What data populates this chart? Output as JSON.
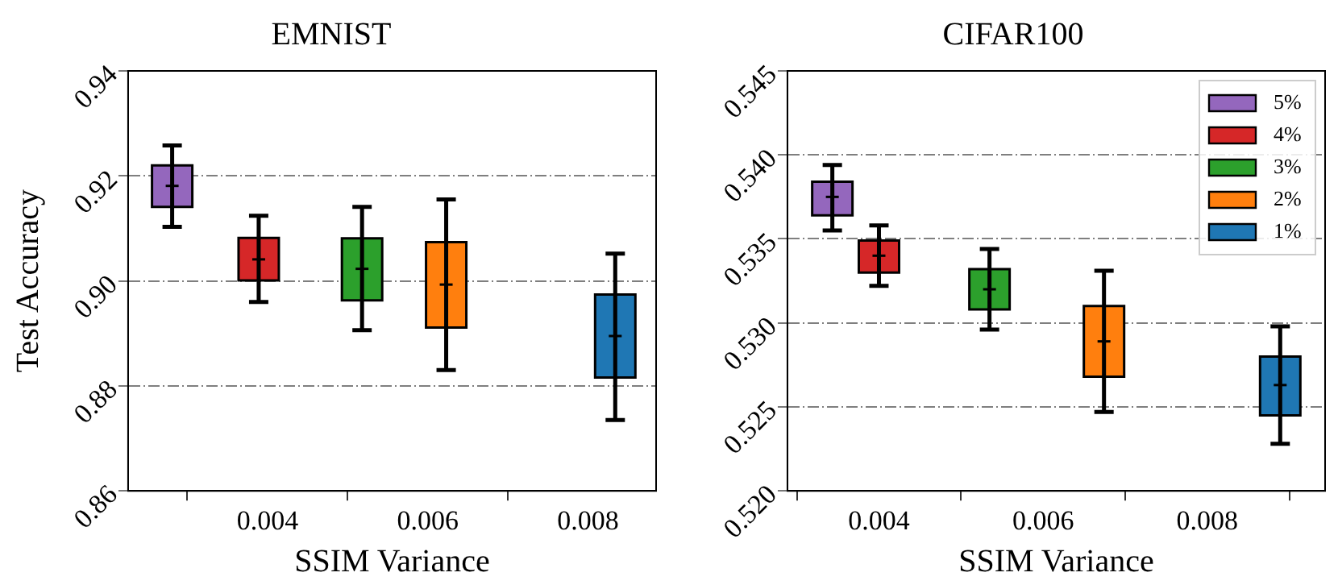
{
  "chart_data": [
    {
      "type": "box",
      "title": "EMNIST",
      "xlabel": "SSIM Variance",
      "ylabel": "Test Accuracy",
      "xlim": [
        0.00226,
        0.00885
      ],
      "xticks": [
        0.004,
        0.006,
        0.008
      ],
      "ylim": [
        0.86,
        0.94
      ],
      "yticks": [
        0.86,
        0.88,
        {
          "value": 0.9,
          "label": "0.90"
        },
        0.92,
        0.94
      ],
      "grid": "y",
      "legend": false,
      "series": [
        {
          "color": "#9467bd",
          "x": [
            0.00281
          ],
          "boxes": [
            {
              "low": 0.9103,
              "q1": 0.9141,
              "median": 0.9181,
              "q3": 0.922,
              "high": 0.9258
            }
          ]
        },
        {
          "color": "#d62728",
          "x": [
            0.00389
          ],
          "boxes": [
            {
              "low": 0.896,
              "q1": 0.9001,
              "median": 0.9041,
              "q3": 0.9082,
              "high": 0.9124
            }
          ]
        },
        {
          "color": "#2ca02c",
          "x": [
            0.00518
          ],
          "boxes": [
            {
              "low": 0.8906,
              "q1": 0.8963,
              "median": 0.9023,
              "q3": 0.9081,
              "high": 0.9141
            }
          ]
        },
        {
          "color": "#ff7f0e",
          "x": [
            0.00623
          ],
          "boxes": [
            {
              "low": 0.883,
              "q1": 0.8911,
              "median": 0.8993,
              "q3": 0.9074,
              "high": 0.9155
            }
          ]
        },
        {
          "color": "#1f77b4",
          "x": [
            0.00834
          ],
          "boxes": [
            {
              "low": 0.8735,
              "q1": 0.8816,
              "median": 0.8895,
              "q3": 0.8974,
              "high": 0.9052
            }
          ]
        }
      ]
    },
    {
      "type": "box",
      "title": "CIFAR100",
      "xlabel": "SSIM Variance",
      "xlim": [
        0.002885,
        0.009436
      ],
      "xticks": [
        0.004,
        0.006,
        0.008
      ],
      "ylim": [
        0.52,
        0.545
      ],
      "yticks": [
        {
          "value": 0.52,
          "label": "0.520"
        },
        0.525,
        {
          "value": 0.53,
          "label": "0.530"
        },
        0.535,
        {
          "value": 0.54,
          "label": "0.540"
        },
        0.545
      ],
      "grid": "y",
      "legend": "top right",
      "series": [
        {
          "name": "5%",
          "color": "#9467bd",
          "x": [
            0.003432
          ],
          "boxes": [
            {
              "low": 0.5355,
              "q1": 0.5364,
              "median": 0.5375,
              "q3": 0.5384,
              "high": 0.5394
            }
          ]
        },
        {
          "name": "4%",
          "color": "#d62728",
          "x": [
            0.004
          ],
          "boxes": [
            {
              "low": 0.5322,
              "q1": 0.533,
              "median": 0.534,
              "q3": 0.5349,
              "high": 0.5358
            }
          ]
        },
        {
          "name": "3%",
          "color": "#2ca02c",
          "x": [
            0.005347
          ],
          "boxes": [
            {
              "low": 0.5296,
              "q1": 0.5308,
              "median": 0.532,
              "q3": 0.5332,
              "high": 0.5344
            }
          ]
        },
        {
          "name": "2%",
          "color": "#ff7f0e",
          "x": [
            0.006742
          ],
          "boxes": [
            {
              "low": 0.5247,
              "q1": 0.5268,
              "median": 0.5289,
              "q3": 0.531,
              "high": 0.5331
            }
          ]
        },
        {
          "name": "1%",
          "color": "#1f77b4",
          "x": [
            0.008889
          ],
          "boxes": [
            {
              "low": 0.5228,
              "q1": 0.5245,
              "median": 0.5263,
              "q3": 0.528,
              "high": 0.5298
            }
          ]
        }
      ]
    }
  ]
}
